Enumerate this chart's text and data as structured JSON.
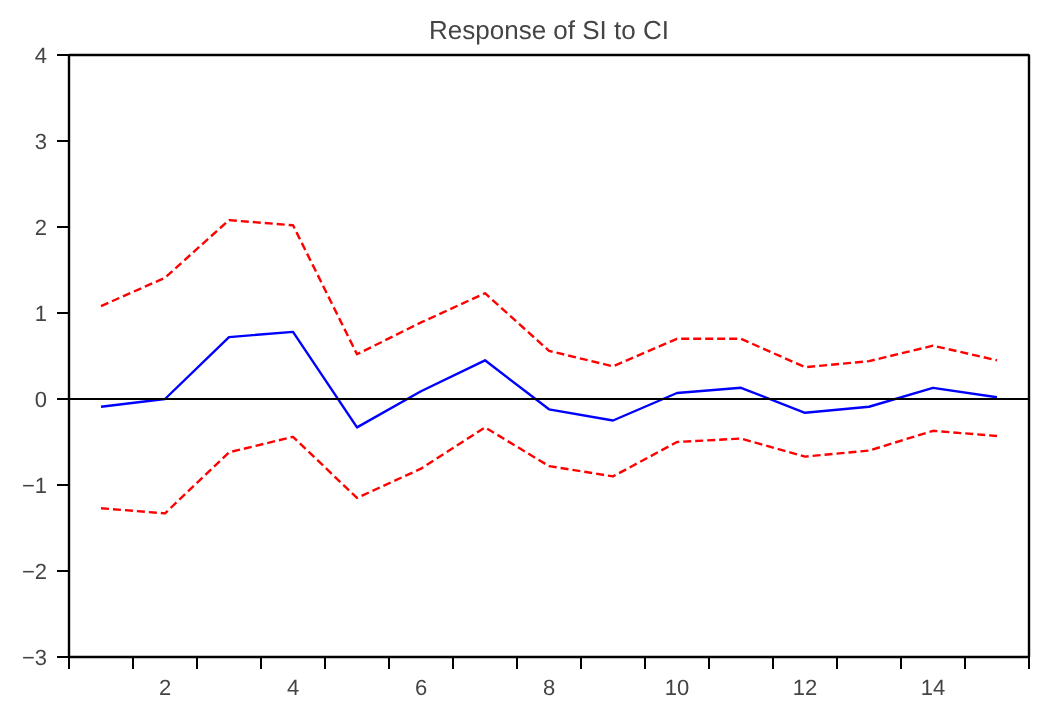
{
  "chart_data": {
    "type": "line",
    "title": "Response of SI to CI",
    "x": [
      1,
      2,
      3,
      4,
      5,
      6,
      7,
      8,
      9,
      10,
      11,
      12,
      13,
      14,
      15
    ],
    "series": [
      {
        "color": "#0000ff",
        "line_style": "solid",
        "values": [
          -0.09,
          0.0,
          0.72,
          0.78,
          -0.33,
          0.09,
          0.45,
          -0.12,
          -0.25,
          0.07,
          0.13,
          -0.16,
          -0.09,
          0.13,
          0.02
        ]
      },
      {
        "color": "#ff0000",
        "line_style": "dashed",
        "values": [
          1.08,
          1.41,
          2.08,
          2.02,
          0.52,
          0.89,
          1.23,
          0.56,
          0.38,
          0.7,
          0.7,
          0.37,
          0.44,
          0.62,
          0.45
        ]
      },
      {
        "color": "#ff0000",
        "line_style": "dashed",
        "values": [
          -1.27,
          -1.33,
          -0.62,
          -0.44,
          -1.15,
          -0.81,
          -0.33,
          -0.78,
          -0.9,
          -0.5,
          -0.46,
          -0.67,
          -0.6,
          -0.37,
          -0.43
        ]
      }
    ],
    "xlim": [
      0.5,
      15.5
    ],
    "xticks": [
      {
        "value": 0.5,
        "label": null
      },
      {
        "value": 1.5,
        "label": null
      },
      {
        "value": 2,
        "label": "2"
      },
      {
        "value": 2.5,
        "label": null
      },
      {
        "value": 3.5,
        "label": null
      },
      {
        "value": 4,
        "label": "4"
      },
      {
        "value": 4.5,
        "label": null
      },
      {
        "value": 5.5,
        "label": null
      },
      {
        "value": 6,
        "label": "6"
      },
      {
        "value": 6.5,
        "label": null
      },
      {
        "value": 7.5,
        "label": null
      },
      {
        "value": 8,
        "label": "8"
      },
      {
        "value": 8.5,
        "label": null
      },
      {
        "value": 9.5,
        "label": null
      },
      {
        "value": 10,
        "label": "10"
      },
      {
        "value": 10.5,
        "label": null
      },
      {
        "value": 11.5,
        "label": null
      },
      {
        "value": 12,
        "label": "12"
      },
      {
        "value": 12.5,
        "label": null
      },
      {
        "value": 13.5,
        "label": null
      },
      {
        "value": 14,
        "label": "14"
      },
      {
        "value": 14.5,
        "label": null
      },
      {
        "value": 15.5,
        "label": null
      }
    ],
    "ylim": [
      -3,
      4
    ],
    "yticks": [
      {
        "value": -3,
        "label": "−3"
      },
      {
        "value": -2,
        "label": "−2"
      },
      {
        "value": -1,
        "label": "−1"
      },
      0,
      1,
      2,
      3,
      4
    ],
    "ref_lines": [
      {
        "axis": "y",
        "value": 0,
        "color": "#000000"
      }
    ],
    "grid": false
  }
}
